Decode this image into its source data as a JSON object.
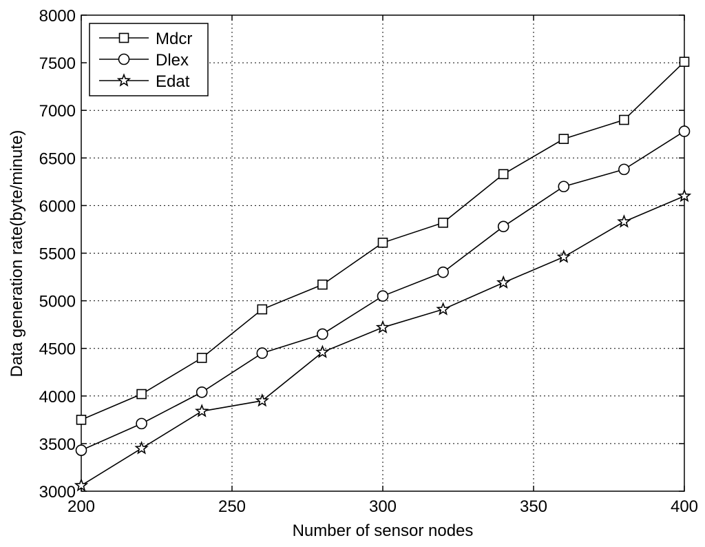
{
  "chart_data": {
    "type": "line",
    "xlabel": "Number of sensor nodes",
    "ylabel": "Data generation rate(byte/minute)",
    "xlim": [
      200,
      400
    ],
    "ylim": [
      3000,
      8000
    ],
    "x_ticks": [
      "200",
      "250",
      "300",
      "350",
      "400"
    ],
    "y_ticks": [
      "3000",
      "3500",
      "4000",
      "4500",
      "5000",
      "5500",
      "6000",
      "6500",
      "7000",
      "7500",
      "8000"
    ],
    "grid": true,
    "legend_position": "top-left",
    "x": [
      200,
      220,
      240,
      260,
      280,
      300,
      320,
      340,
      360,
      380,
      400
    ],
    "series": [
      {
        "name": "Mdcr",
        "marker": "square",
        "values": [
          3750,
          4020,
          4400,
          4910,
          5170,
          5610,
          5820,
          6330,
          6700,
          6900,
          7510
        ]
      },
      {
        "name": "Dlex",
        "marker": "circle",
        "values": [
          3430,
          3710,
          4040,
          4450,
          4650,
          5050,
          5300,
          5780,
          6200,
          6380,
          6780
        ]
      },
      {
        "name": "Edat",
        "marker": "star",
        "values": [
          3060,
          3450,
          3840,
          3950,
          4460,
          4720,
          4910,
          5190,
          5460,
          5830,
          6100
        ]
      }
    ],
    "line_color": "#000000"
  }
}
